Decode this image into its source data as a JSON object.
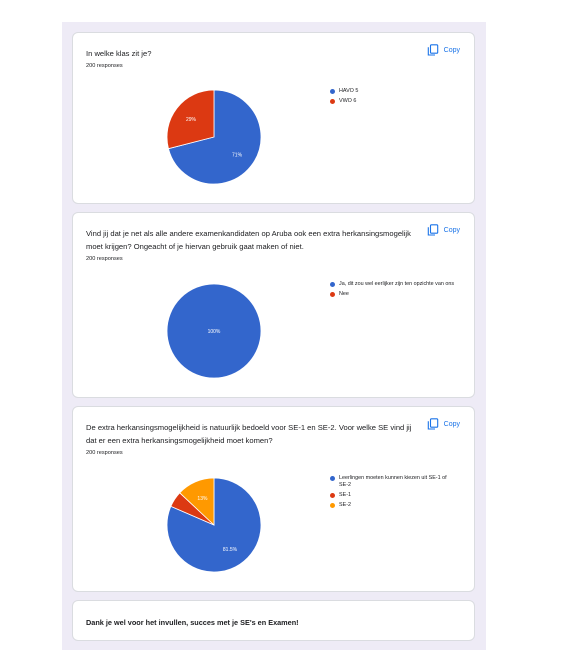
{
  "copy_label": "Copy",
  "questions": [
    {
      "title": "In welke klas zit je?",
      "responses": "200 responses",
      "chart_data": {
        "type": "pie",
        "categories": [
          "HAVO 5",
          "VWO 6"
        ],
        "values": [
          71,
          29
        ],
        "labels": [
          "71%",
          "29%"
        ],
        "colors": [
          "#3366cc",
          "#dc3912"
        ]
      }
    },
    {
      "title": "Vind jij dat je net als alle andere examenkandidaten op Aruba ook een extra herkansingsmogelijk moet krijgen? Ongeacht of je hiervan gebruik gaat maken of niet.",
      "responses": "200 responses",
      "chart_data": {
        "type": "pie",
        "categories": [
          "Ja, dit zou wel eerlijker zijn ten opzichte van ons",
          "Nee"
        ],
        "values": [
          100,
          0
        ],
        "labels": [
          "100%",
          ""
        ],
        "colors": [
          "#3366cc",
          "#dc3912"
        ]
      }
    },
    {
      "title": "De extra herkansingsmogelijkheid is natuurlijk bedoeld voor SE-1 en SE-2. Voor welke SE vind jij dat er een extra herkansingsmogelijkheid moet komen?",
      "responses": "200 responses",
      "chart_data": {
        "type": "pie",
        "categories": [
          "Leerlingen moeten kunnen kiezen uit SE-1 of SE-2",
          "SE-1",
          "SE-2"
        ],
        "values": [
          81.5,
          5.5,
          13
        ],
        "labels": [
          "81.5%",
          "",
          "13%"
        ],
        "colors": [
          "#3366cc",
          "#dc3912",
          "#ff9900"
        ]
      }
    }
  ],
  "closing": "Dank je wel voor het invullen, succes met je SE's en Examen!"
}
